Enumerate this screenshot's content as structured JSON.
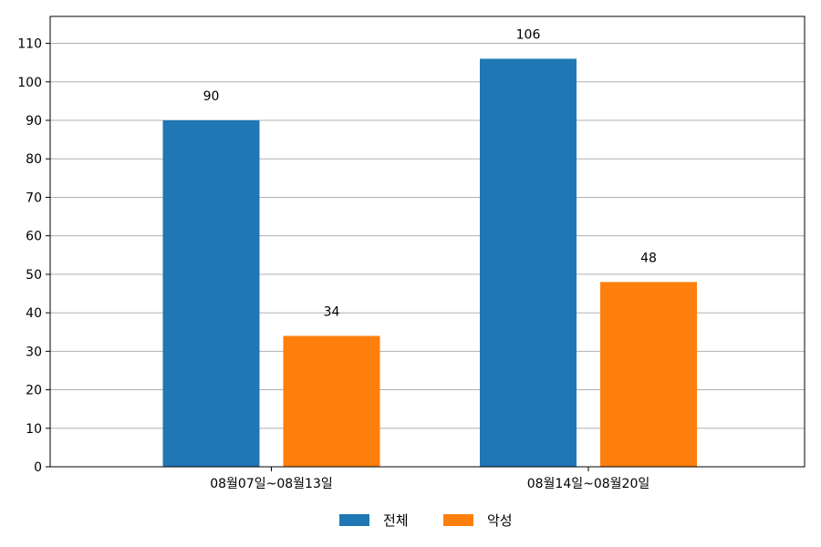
{
  "chart_data": {
    "type": "bar",
    "title": "",
    "xlabel": "",
    "ylabel": "",
    "categories": [
      "08월07일~08월13일",
      "08월14일~08월20일"
    ],
    "series": [
      {
        "name": "전체",
        "values": [
          90,
          106
        ],
        "color": "#1f77b4"
      },
      {
        "name": "악성",
        "values": [
          34,
          48
        ],
        "color": "#ff7f0e"
      }
    ],
    "ylim": [
      0,
      117
    ],
    "yticks": [
      0,
      10,
      20,
      30,
      40,
      50,
      60,
      70,
      80,
      90,
      100,
      110
    ],
    "grid": true,
    "legend": "bottom-center"
  }
}
